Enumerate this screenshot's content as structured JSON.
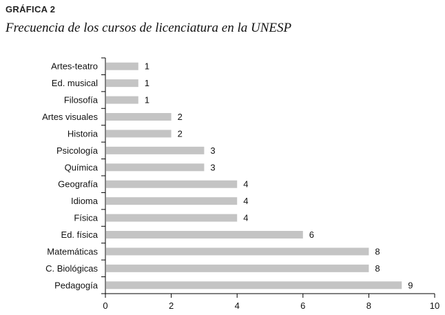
{
  "header": {
    "label": "GRÁFICA 2",
    "title": "Frecuencia de los cursos de licenciatura en la UNESP"
  },
  "chart_data": {
    "type": "bar",
    "orientation": "horizontal",
    "categories": [
      "Artes-teatro",
      "Ed. musical",
      "Filosofía",
      "Artes visuales",
      "Historia",
      "Psicología",
      "Química",
      "Geografía",
      "Idioma",
      "Física",
      "Ed. física",
      "Matemáticas",
      "C. Biológicas",
      "Pedagogía"
    ],
    "values": [
      1,
      1,
      1,
      2,
      2,
      3,
      3,
      4,
      4,
      4,
      6,
      8,
      8,
      9
    ],
    "title": "Frecuencia de los cursos de licenciatura en la UNESP",
    "xlabel": "",
    "ylabel": "",
    "xlim": [
      0,
      10
    ],
    "xticks": [
      0,
      2,
      4,
      6,
      8,
      10
    ],
    "bar_color": "#c4c4c4",
    "grid": false,
    "data_labels": true
  }
}
